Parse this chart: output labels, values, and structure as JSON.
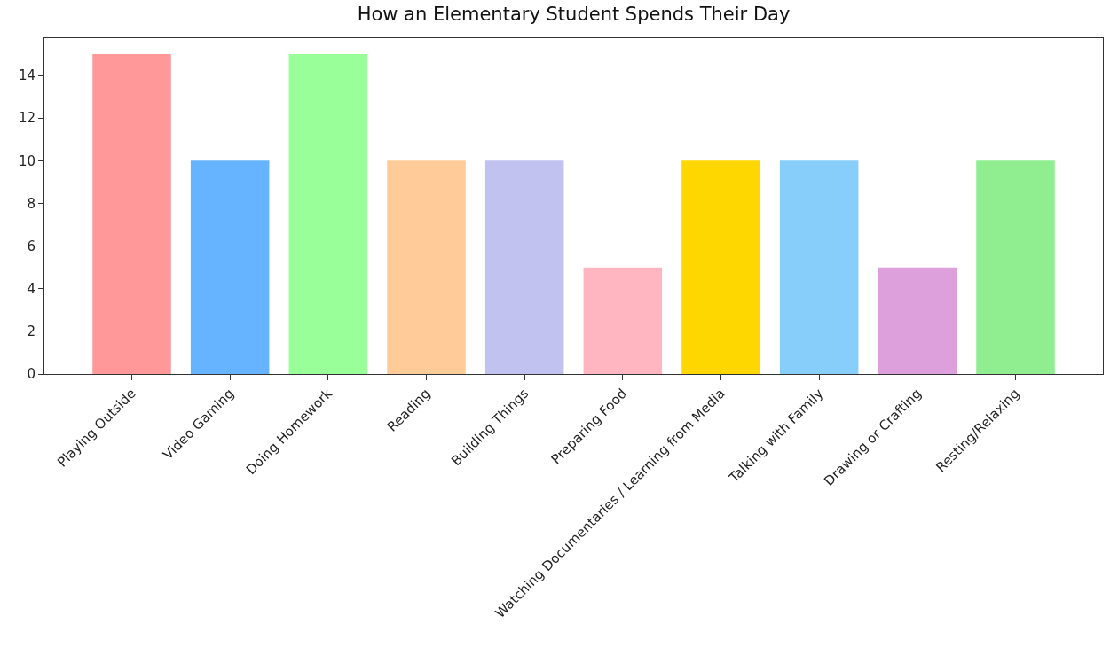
{
  "chart_data": {
    "type": "bar",
    "title": "How an Elementary Student Spends Their Day",
    "categories": [
      "Playing Outside",
      "Video Gaming",
      "Doing Homework",
      "Reading",
      "Building Things",
      "Preparing Food",
      "Watching Documentaries / Learning from Media",
      "Talking with Family",
      "Drawing or Crafting",
      "Resting/Relaxing"
    ],
    "values": [
      15,
      10,
      15,
      10,
      10,
      5,
      10,
      10,
      5,
      10
    ],
    "colors": [
      "#ff9999",
      "#66b3ff",
      "#99ff99",
      "#ffcc99",
      "#c2c2f0",
      "#ffb6c1",
      "#ffd700",
      "#87cefa",
      "#dda0dd",
      "#90ee90"
    ],
    "ylim": [
      0,
      15.75
    ],
    "yticks": [
      0,
      2,
      4,
      6,
      8,
      10,
      12,
      14
    ]
  }
}
